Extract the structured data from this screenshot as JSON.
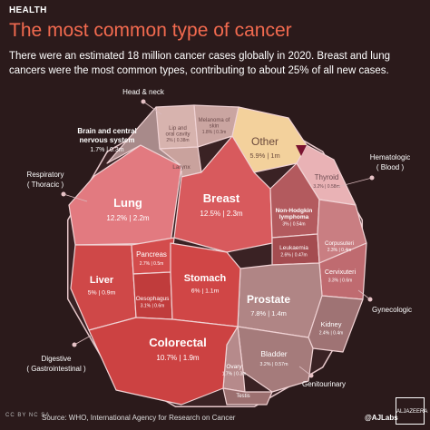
{
  "header": {
    "section": "HEALTH",
    "title": "The most common type of cancer",
    "subtitle": "There were an estimated 18 million cancer cases globally in 2020. Breast and lung cancers were the most common types, contributing to about 25% of all new cases."
  },
  "footer": {
    "source": "Source: WHO, International Agency for Research on Cancer",
    "brand": "@AJLabs",
    "license": "CC BY NC SA",
    "logo_text": "ALJAZEERA"
  },
  "colors": {
    "background": "#2b1a1b",
    "title": "#f26a4f",
    "respiratory": "#e27a80",
    "digestive": "#cf4848",
    "breast": "#d85a5d",
    "hematologic": "#b35a5e",
    "gynecologic": "#c97e82",
    "genitourinary": "#b08585",
    "head_neck": "#d7b3ae",
    "other": "#f3d19c",
    "dots": "#e9c4c8"
  },
  "chart_data": {
    "type": "treemap",
    "unit": "share of new cases, % | cases",
    "groups": [
      {
        "name": "Head & neck"
      },
      {
        "name": "Respiratory ( Thoracic )"
      },
      {
        "name": "Digestive ( Gastrointestinal )"
      },
      {
        "name": "Hematologic ( Blood )"
      },
      {
        "name": "Gynecologic"
      },
      {
        "name": "Genitourinary"
      }
    ],
    "cells": [
      {
        "name": "Breast",
        "value": "12.5% | 2.3m",
        "pct": 12.5
      },
      {
        "name": "Lung",
        "value": "12.2% | 2.2m",
        "pct": 12.2,
        "group": "Respiratory"
      },
      {
        "name": "Colorectal",
        "value": "10.7% | 1.9m",
        "pct": 10.7,
        "group": "Digestive"
      },
      {
        "name": "Prostate",
        "value": "7.8% | 1.4m",
        "pct": 7.8,
        "group": "Genitourinary"
      },
      {
        "name": "Stomach",
        "value": "6% | 1.1m",
        "pct": 6,
        "group": "Digestive"
      },
      {
        "name": "Other",
        "value": "5.9% | 1m",
        "pct": 5.9
      },
      {
        "name": "Liver",
        "value": "5% | 0.9m",
        "pct": 5,
        "group": "Digestive"
      },
      {
        "name": "Cervixuteri",
        "value": "3.3% | 0.6m",
        "pct": 3.3,
        "group": "Gynecologic"
      },
      {
        "name": "Oesophagus",
        "value": "3.1% | 0.6m",
        "pct": 3.1,
        "group": "Digestive"
      },
      {
        "name": "Thyroid",
        "value": "3.2% | 0.58m",
        "pct": 3.2
      },
      {
        "name": "Non-Hodgkin lymphoma",
        "value": "3% | 0.54m",
        "pct": 3,
        "group": "Hematologic"
      },
      {
        "name": "Pancreas",
        "value": "2.7% | 0.5m",
        "pct": 2.7,
        "group": "Digestive"
      },
      {
        "name": "Leukaemia",
        "value": "2.6% | 0.47m",
        "pct": 2.6,
        "group": "Hematologic"
      },
      {
        "name": "Kidney",
        "value": "2.4% | 0.4m",
        "pct": 2.4,
        "group": "Genitourinary"
      },
      {
        "name": "Bladder",
        "value": "3.2% | 0.57m",
        "pct": 3.2,
        "group": "Genitourinary"
      },
      {
        "name": "Corpusuteri",
        "value": "2.3% | 0.4m",
        "pct": 2.3,
        "group": "Gynecologic"
      },
      {
        "name": "Lip and oral cavity",
        "value": "2% | 0.38m",
        "pct": 2,
        "group": "Head & neck"
      },
      {
        "name": "Melanoma of skin",
        "value": "1.8% | 0.3m",
        "pct": 1.8
      },
      {
        "name": "Brain and central nervous system",
        "value": "1.7% | 0.3m",
        "pct": 1.7
      },
      {
        "name": "Ovary",
        "value": "1.7% | 0.3m",
        "pct": 1.7,
        "group": "Gynecologic"
      },
      {
        "name": "Larynx",
        "value": "",
        "group": "Head & neck"
      },
      {
        "name": "Testis",
        "value": "",
        "group": "Genitourinary"
      }
    ]
  }
}
